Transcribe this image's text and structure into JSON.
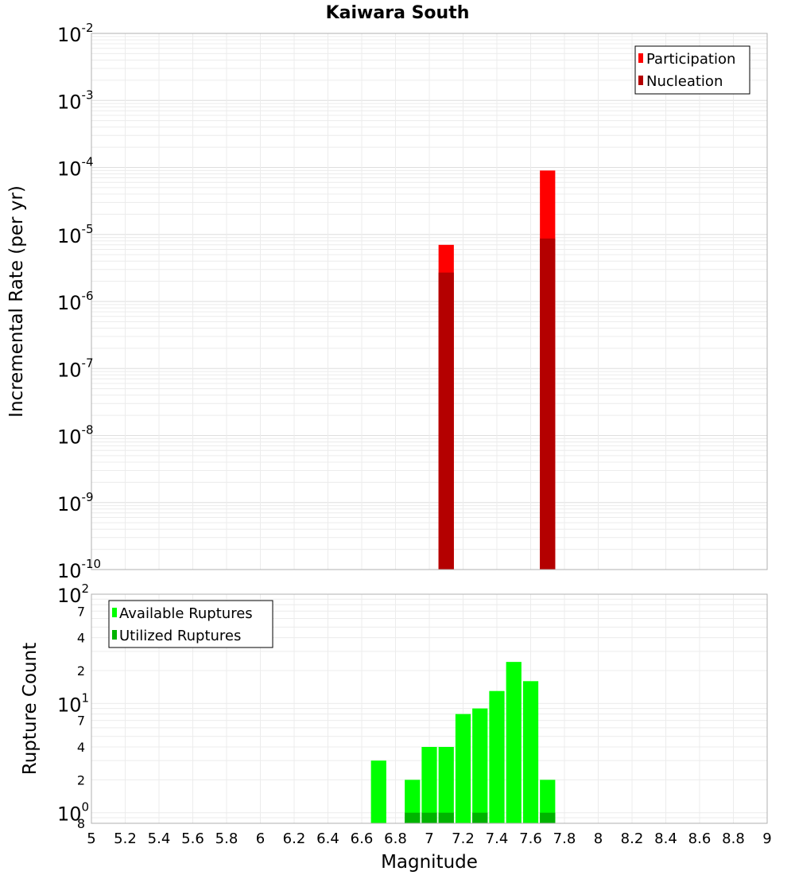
{
  "chart_data": [
    {
      "type": "bar",
      "title": "Kaiwara South",
      "ylabel": "Incremental Rate (per yr)",
      "xlabel": "",
      "y_scale": "log",
      "ylim": [
        1e-10,
        0.01
      ],
      "xlim": [
        5,
        9
      ],
      "grid": true,
      "legend_position": "top-right",
      "bin_width": 0.1,
      "x": [
        7.1,
        7.7
      ],
      "series": [
        {
          "name": "Participation",
          "color": "#ff0000",
          "values": [
            7e-06,
            9e-05
          ]
        },
        {
          "name": "Nucleation",
          "color": "#b40000",
          "values": [
            2.7e-06,
            8.7e-06
          ]
        }
      ],
      "y_ticks": [
        {
          "base": "10",
          "exp": "-2"
        },
        {
          "base": "10",
          "exp": "-3"
        },
        {
          "base": "10",
          "exp": "-4"
        },
        {
          "base": "10",
          "exp": "-5"
        },
        {
          "base": "10",
          "exp": "-6"
        },
        {
          "base": "10",
          "exp": "-7"
        },
        {
          "base": "10",
          "exp": "-8"
        },
        {
          "base": "10",
          "exp": "-9"
        },
        {
          "base": "10",
          "exp": "-10"
        }
      ]
    },
    {
      "type": "bar",
      "ylabel": "Rupture Count",
      "xlabel": "Magnitude",
      "y_scale": "log",
      "ylim": [
        0.8,
        100
      ],
      "xlim": [
        5,
        9
      ],
      "grid": true,
      "legend_position": "top-left",
      "bin_width": 0.1,
      "x": [
        6.7,
        6.9,
        7.0,
        7.1,
        7.2,
        7.3,
        7.4,
        7.5,
        7.6,
        7.7
      ],
      "series": [
        {
          "name": "Available Ruptures",
          "color": "#00ff00",
          "values": [
            3,
            2,
            4,
            4,
            8,
            9,
            13,
            24,
            16,
            2
          ]
        },
        {
          "name": "Utilized Ruptures",
          "color": "#00b400",
          "values": [
            0,
            1,
            1,
            1,
            0,
            1,
            0,
            0,
            0,
            1
          ]
        }
      ],
      "y_major_ticks": [
        {
          "base": "10",
          "exp": "2",
          "value": 100
        },
        {
          "base": "10",
          "exp": "1",
          "value": 10
        },
        {
          "base": "10",
          "exp": "0",
          "value": 1
        }
      ],
      "y_minor_ticks": [
        {
          "label": "7",
          "value": 70
        },
        {
          "label": "4",
          "value": 40
        },
        {
          "label": "2",
          "value": 20
        },
        {
          "label": "7",
          "value": 7
        },
        {
          "label": "4",
          "value": 4
        },
        {
          "label": "2",
          "value": 2
        },
        {
          "label": "8",
          "value": 0.8
        }
      ],
      "x_ticks": [
        "5",
        "5.2",
        "5.4",
        "5.6",
        "5.8",
        "6",
        "6.2",
        "6.4",
        "6.6",
        "6.8",
        "7",
        "7.2",
        "7.4",
        "7.6",
        "7.8",
        "8",
        "8.2",
        "8.4",
        "8.6",
        "8.8",
        "9"
      ]
    }
  ]
}
